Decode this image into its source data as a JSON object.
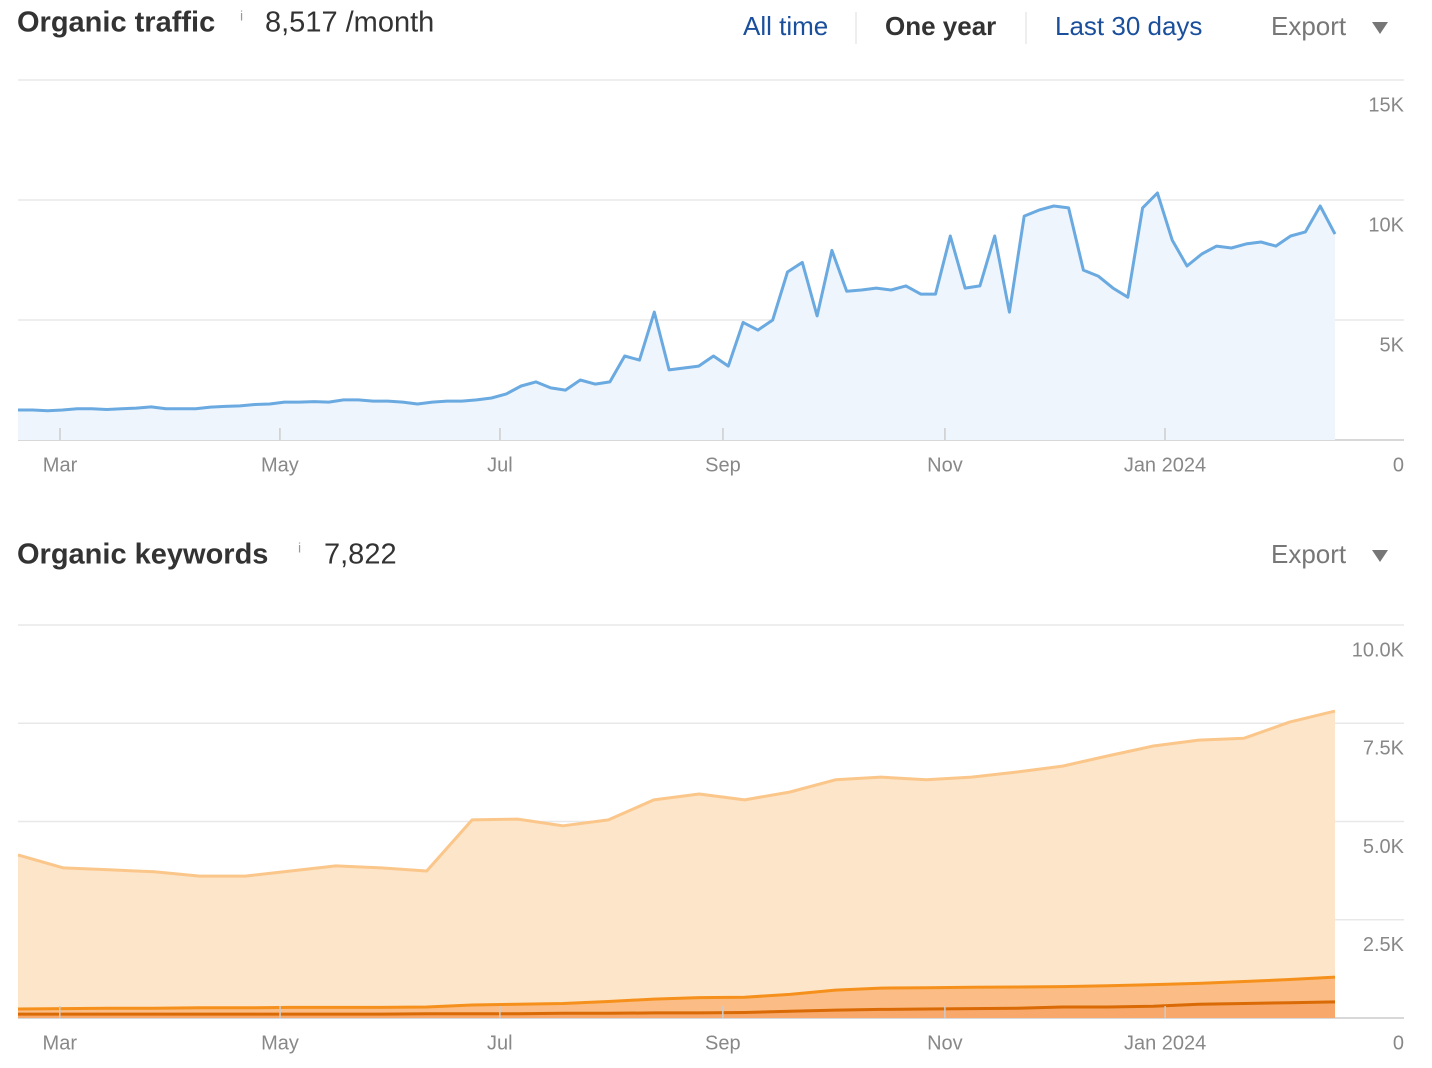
{
  "chart_data": [
    {
      "type": "area",
      "title": "Organic traffic",
      "info": "i",
      "total": "8,517 /month",
      "ranges": [
        "All time",
        "One year",
        "Last 30 days"
      ],
      "active_range": 1,
      "export": "Export",
      "color": "#6aaae0",
      "fill": "#eef5fd",
      "values": [
        1250,
        1250,
        1220,
        1250,
        1300,
        1300,
        1270,
        1300,
        1330,
        1380,
        1300,
        1300,
        1300,
        1370,
        1400,
        1420,
        1480,
        1500,
        1580,
        1580,
        1600,
        1580,
        1670,
        1670,
        1620,
        1620,
        1580,
        1500,
        1580,
        1620,
        1620,
        1670,
        1750,
        1920,
        2250,
        2420,
        2170,
        2080,
        2500,
        2330,
        2420,
        3500,
        3330,
        5330,
        2920,
        3000,
        3080,
        3500,
        3080,
        4900,
        4580,
        5000,
        7000,
        7400,
        5170,
        7900,
        6200,
        6250,
        6330,
        6250,
        6420,
        6080,
        6080,
        8500,
        6330,
        6420,
        8500,
        5330,
        9330,
        9580,
        9750,
        9670,
        7080,
        6830,
        6330,
        5950,
        9670,
        10290,
        8330,
        7250,
        7750,
        8080,
        8000,
        8170,
        8250,
        8080,
        8500,
        8670,
        9750,
        8580
      ],
      "ylim": [
        0,
        15000
      ],
      "yticks": [
        0,
        {
          "value": 5000,
          "label": "5K"
        },
        {
          "value": 10000,
          "label": "10K"
        },
        {
          "value": 15000,
          "label": "15K"
        }
      ],
      "xticks": [
        {
          "value": 2.84,
          "label": "Mar"
        },
        {
          "value": 17.7,
          "label": "May"
        },
        {
          "value": 32.57,
          "label": "Jul"
        },
        {
          "value": 47.64,
          "label": "Sep"
        },
        {
          "value": 62.64,
          "label": "Nov"
        },
        {
          "value": 77.51,
          "label": "Jan 2024"
        }
      ],
      "grid": true
    },
    {
      "type": "stacked_area",
      "title": "Organic keywords",
      "info": "i",
      "total": "7,822",
      "export": "Export",
      "series": [
        {
          "color": "#d96a06",
          "fill": "#f7a86a",
          "values": [
            100,
            100,
            100,
            100,
            100,
            100,
            100,
            100,
            100,
            110,
            110,
            110,
            120,
            120,
            130,
            130,
            140,
            170,
            200,
            220,
            230,
            240,
            250,
            280,
            280,
            300,
            350,
            370,
            390,
            410
          ]
        },
        {
          "color": "#f5901c",
          "fill": "#fbbd85",
          "values": [
            130,
            140,
            150,
            150,
            160,
            160,
            170,
            170,
            170,
            170,
            220,
            240,
            250,
            300,
            350,
            390,
            390,
            430,
            510,
            540,
            540,
            540,
            540,
            520,
            540,
            550,
            530,
            560,
            590,
            630
          ]
        },
        {
          "color": "#fbc68a",
          "fill": "#fde5c9",
          "values": [
            3920,
            3580,
            3520,
            3470,
            3350,
            3350,
            3470,
            3600,
            3550,
            3460,
            4710,
            4710,
            4520,
            4620,
            5070,
            5180,
            5020,
            5150,
            5350,
            5370,
            5290,
            5350,
            5470,
            5610,
            5850,
            6070,
            6190,
            6190,
            6550,
            6770
          ]
        }
      ],
      "ylim": [
        0,
        10000
      ],
      "yticks": [
        0,
        {
          "value": 2500,
          "label": "2.5K"
        },
        {
          "value": 5000,
          "label": "5.0K"
        },
        {
          "value": 7500,
          "label": "7.5K"
        },
        {
          "value": 10000,
          "label": "10.0K"
        }
      ],
      "xticks": [
        {
          "value": 0.92,
          "label": "Mar"
        },
        {
          "value": 5.77,
          "label": "May"
        },
        {
          "value": 10.61,
          "label": "Jul"
        },
        {
          "value": 15.52,
          "label": "Sep"
        },
        {
          "value": 20.41,
          "label": "Nov"
        },
        {
          "value": 25.26,
          "label": "Jan 2024"
        }
      ],
      "grid": true
    }
  ]
}
